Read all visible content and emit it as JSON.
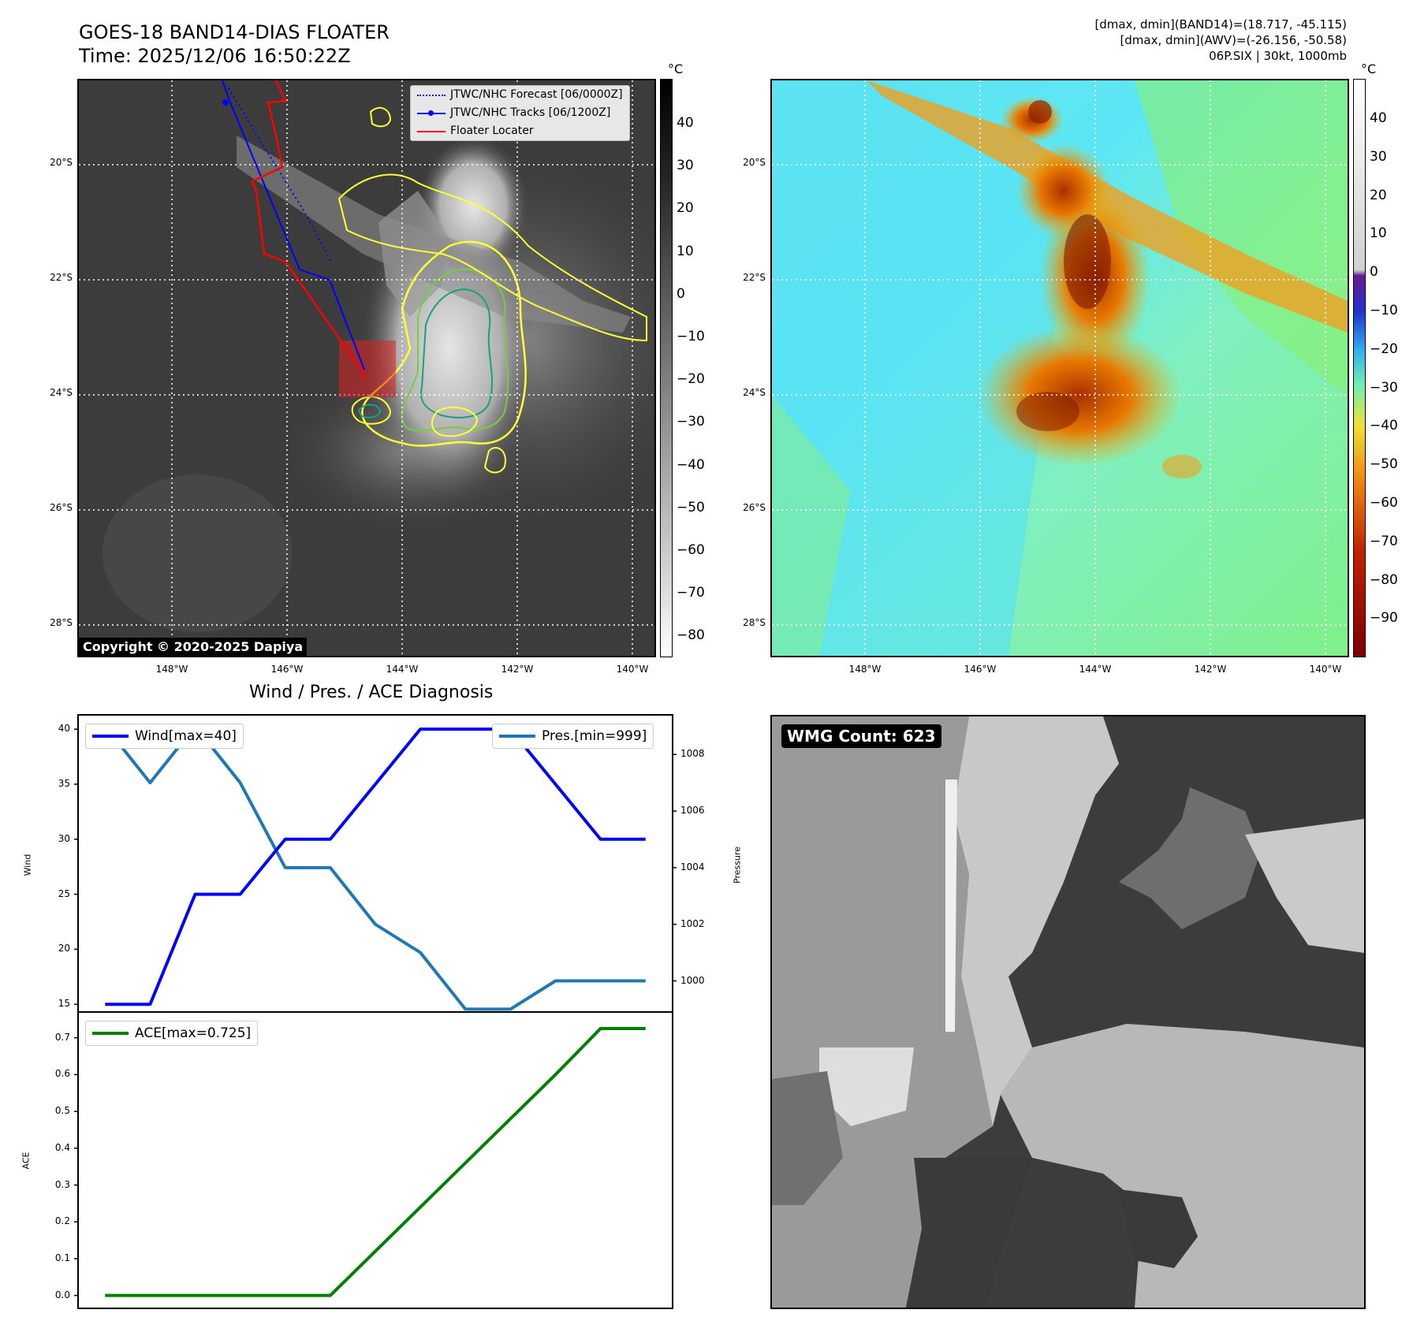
{
  "header": {
    "title_line1": "GOES-18 BAND14-DIAS FLOATER",
    "title_line2": "Time: 2025/12/06 16:50:22Z",
    "info_line1": "[dmax, dmin](BAND14)=(18.717, -45.115)",
    "info_line2": "[dmax, dmin](AWV)=(-26.156, -50.58)",
    "info_line3": "06P.SIX | 30kt, 1000mb"
  },
  "map": {
    "lat_labels": [
      "20°S",
      "22°S",
      "24°S",
      "26°S",
      "28°S"
    ],
    "lon_labels": [
      "148°W",
      "146°W",
      "144°W",
      "142°W",
      "140°W"
    ],
    "copyright": "Copyright © 2020-2025 Dapiya",
    "legend": [
      {
        "label": "JTWC/NHC Forecast [06/0000Z]",
        "color": "#0000ff",
        "style": "dotted"
      },
      {
        "label": "JTWC/NHC Tracks [06/1200Z]",
        "color": "#0000ff",
        "style": "solid-marker"
      },
      {
        "label": "Floater Locater",
        "color": "#ff0000",
        "style": "solid"
      }
    ]
  },
  "colorbar_gray": {
    "unit": "°C",
    "ticks": [
      "40",
      "30",
      "20",
      "10",
      "0",
      "−10",
      "−20",
      "−30",
      "−40",
      "−50",
      "−60",
      "−70",
      "−80"
    ]
  },
  "colorbar_color": {
    "unit": "°C",
    "ticks": [
      "40",
      "30",
      "20",
      "10",
      "0",
      "−10",
      "−20",
      "−30",
      "−40",
      "−50",
      "−60",
      "−70",
      "−80",
      "−90"
    ]
  },
  "wmg": {
    "label": "WMG Count: 623"
  },
  "diag": {
    "title": "Wind / Pres. / ACE Diagnosis",
    "wind_axis_label": "Wind",
    "pressure_axis_label": "Pressure",
    "ace_axis_label": "ACE",
    "wind_ticks": [
      "40",
      "35",
      "30",
      "25",
      "20",
      "15"
    ],
    "pres_ticks": [
      "1008",
      "1006",
      "1004",
      "1002",
      "1000"
    ],
    "ace_ticks": [
      "0.7",
      "0.6",
      "0.5",
      "0.4",
      "0.3",
      "0.2",
      "0.1",
      "0.0"
    ],
    "wind_legend": "Wind[max=40]",
    "pres_legend": "Pres.[min=999]",
    "ace_legend": "ACE[max=0.725]"
  },
  "chart_data": [
    {
      "type": "line",
      "title": "Wind / Pres. / ACE Diagnosis",
      "x": [
        0,
        1,
        2,
        3,
        4,
        5,
        6,
        7,
        8,
        9,
        10,
        11,
        12
      ],
      "series": [
        {
          "name": "Wind[max=40]",
          "axis": "left",
          "color": "#0000ff",
          "values": [
            15,
            15,
            25,
            25,
            30,
            30,
            35,
            40,
            40,
            40,
            35,
            30,
            30
          ]
        },
        {
          "name": "Pres.[min=999]",
          "axis": "right",
          "color": "#1f77b4",
          "values": [
            1009,
            1007,
            1009,
            1007,
            1004,
            1004,
            1002,
            1001,
            999,
            999,
            1000,
            1000,
            1000
          ]
        }
      ],
      "ylabel": "Wind",
      "ylim": [
        14.3,
        41.3
      ],
      "y2label": "Pressure",
      "y2lim": [
        998.9,
        1009.4
      ],
      "xlim": [
        -0.6,
        12.6
      ]
    },
    {
      "type": "line",
      "x": [
        0,
        1,
        2,
        3,
        4,
        5,
        6,
        7,
        8,
        9,
        10,
        11,
        12
      ],
      "series": [
        {
          "name": "ACE[max=0.725]",
          "color": "#008000",
          "values": [
            0,
            0,
            0,
            0,
            0,
            0,
            0.12,
            0.24,
            0.36,
            0.48,
            0.6,
            0.725,
            0.725
          ]
        }
      ],
      "ylabel": "ACE",
      "ylim": [
        -0.035,
        0.77
      ],
      "xlim": [
        -0.6,
        12.6
      ]
    }
  ]
}
